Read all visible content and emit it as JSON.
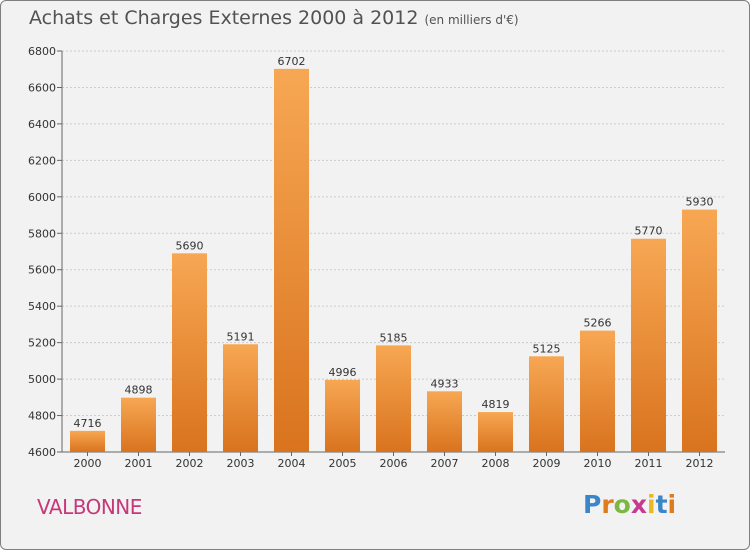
{
  "title": "Achats et Charges Externes 2000 à 2012",
  "subtitle": "(en milliers d'€)",
  "place": "VALBONNE",
  "logo": {
    "text": "Proxiti",
    "colors": [
      "#3a86c8",
      "#e07b1b",
      "#7cb742",
      "#c63a8f",
      "#e8b923",
      "#3a86c8",
      "#e07b1b"
    ]
  },
  "colors": {
    "bar_top": "#f7a753",
    "bar_bottom": "#d9731e",
    "grid": "#cccccc",
    "background": "#f2f2f2"
  },
  "chart_data": {
    "type": "bar",
    "title": "Achats et Charges Externes 2000 à 2012",
    "subtitle": "(en milliers d'€)",
    "categories": [
      "2000",
      "2001",
      "2002",
      "2003",
      "2004",
      "2005",
      "2006",
      "2007",
      "2008",
      "2009",
      "2010",
      "2011",
      "2012"
    ],
    "values": [
      4716,
      4898,
      5690,
      5191,
      6702,
      4996,
      5185,
      4933,
      4819,
      5125,
      5266,
      5770,
      5930
    ],
    "ylim": [
      4600,
      6800
    ],
    "yticks": [
      4600,
      4800,
      5000,
      5200,
      5400,
      5600,
      5800,
      6000,
      6200,
      6400,
      6600,
      6800
    ],
    "grid": true,
    "xlabel": "",
    "ylabel": ""
  }
}
